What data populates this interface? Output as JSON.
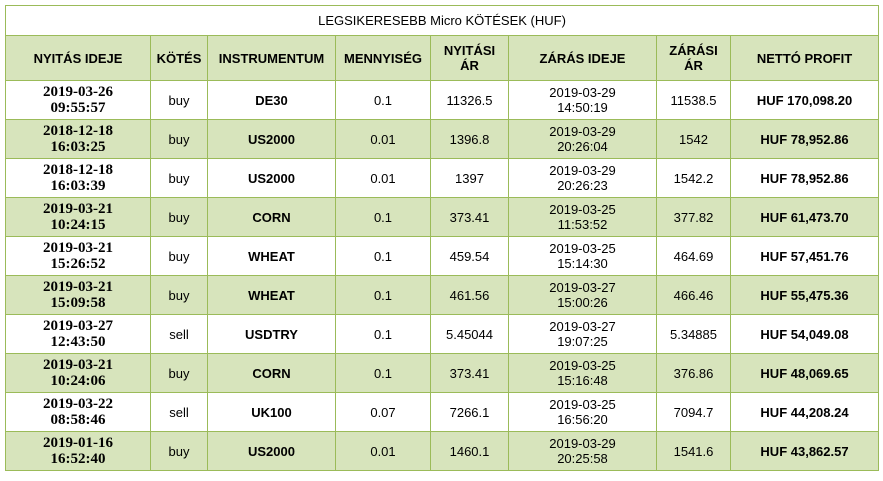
{
  "title": "LEGSIKERESEBB Micro KÖTÉSEK (HUF)",
  "table": {
    "header": [
      "NYITÁS IDEJE",
      "KÖTÉS",
      "INSTRUMENTUM",
      "MENNYISÉG",
      "NYITÁSI\nÁR",
      "ZÁRÁS IDEJE",
      "ZÁRÁSI\nÁR",
      "NETTÓ PROFIT"
    ],
    "rows": [
      [
        "2019-03-26\n09:55:57",
        "buy",
        "DE30",
        "0.1",
        "11326.5",
        "2019-03-29\n14:50:19",
        "11538.5",
        "HUF 170,098.20"
      ],
      [
        "2018-12-18\n16:03:25",
        "buy",
        "US2000",
        "0.01",
        "1396.8",
        "2019-03-29\n20:26:04",
        "1542",
        "HUF 78,952.86"
      ],
      [
        "2018-12-18\n16:03:39",
        "buy",
        "US2000",
        "0.01",
        "1397",
        "2019-03-29\n20:26:23",
        "1542.2",
        "HUF 78,952.86"
      ],
      [
        "2019-03-21\n10:24:15",
        "buy",
        "CORN",
        "0.1",
        "373.41",
        "2019-03-25\n11:53:52",
        "377.82",
        "HUF 61,473.70"
      ],
      [
        "2019-03-21\n15:26:52",
        "buy",
        "WHEAT",
        "0.1",
        "459.54",
        "2019-03-25\n15:14:30",
        "464.69",
        "HUF 57,451.76"
      ],
      [
        "2019-03-21\n15:09:58",
        "buy",
        "WHEAT",
        "0.1",
        "461.56",
        "2019-03-27\n15:00:26",
        "466.46",
        "HUF 55,475.36"
      ],
      [
        "2019-03-27\n12:43:50",
        "sell",
        "USDTRY",
        "0.1",
        "5.45044",
        "2019-03-27\n19:07:25",
        "5.34885",
        "HUF 54,049.08"
      ],
      [
        "2019-03-21\n10:24:06",
        "buy",
        "CORN",
        "0.1",
        "373.41",
        "2019-03-25\n15:16:48",
        "376.86",
        "HUF 48,069.65"
      ],
      [
        "2019-03-22\n08:58:46",
        "sell",
        "UK100",
        "0.07",
        "7266.1",
        "2019-03-25\n16:56:20",
        "7094.7",
        "HUF 44,208.24"
      ],
      [
        "2019-01-16\n16:52:40",
        "buy",
        "US2000",
        "0.01",
        "1460.1",
        "2019-03-29\n20:25:58",
        "1541.6",
        "HUF 43,862.57"
      ]
    ]
  }
}
